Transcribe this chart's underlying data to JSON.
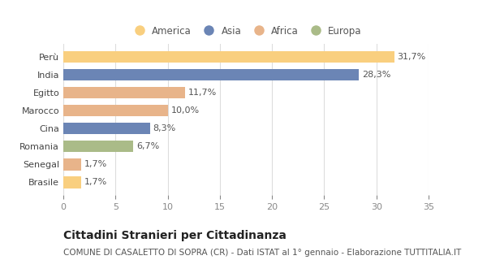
{
  "countries": [
    "Perù",
    "India",
    "Egitto",
    "Marocco",
    "Cina",
    "Romania",
    "Senegal",
    "Brasile"
  ],
  "values": [
    31.7,
    28.3,
    11.7,
    10.0,
    8.3,
    6.7,
    1.7,
    1.7
  ],
  "labels": [
    "31,7%",
    "28,3%",
    "11,7%",
    "10,0%",
    "8,3%",
    "6,7%",
    "1,7%",
    "1,7%"
  ],
  "colors": [
    "#F9CF7F",
    "#6B85B5",
    "#E8B48A",
    "#E8B48A",
    "#6B85B5",
    "#AABB88",
    "#E8B48A",
    "#F9CF7F"
  ],
  "legend_labels": [
    "America",
    "Asia",
    "Africa",
    "Europa"
  ],
  "legend_colors": [
    "#F9CF7F",
    "#6B85B5",
    "#E8B48A",
    "#AABB88"
  ],
  "xlim": [
    0,
    35
  ],
  "xticks": [
    0,
    5,
    10,
    15,
    20,
    25,
    30,
    35
  ],
  "title": "Cittadini Stranieri per Cittadinanza",
  "subtitle": "COMUNE DI CASALETTO DI SOPRA (CR) - Dati ISTAT al 1° gennaio - Elaborazione TUTTITALIA.IT",
  "bg_color": "#ffffff",
  "bar_bg_color": "#ffffff",
  "title_fontsize": 10,
  "subtitle_fontsize": 7.5,
  "label_fontsize": 8,
  "tick_fontsize": 8,
  "legend_fontsize": 8.5
}
